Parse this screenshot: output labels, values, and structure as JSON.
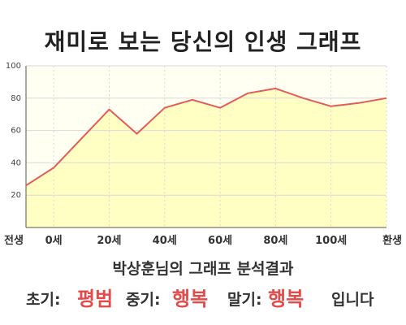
{
  "title": "재미로 보는 당신의 인생 그래프",
  "chart_data": {
    "type": "area",
    "x_categories": [
      "전생",
      "0세",
      "20세",
      "40세",
      "60세",
      "80세",
      "100세",
      "환생"
    ],
    "points": [
      {
        "x": "전생",
        "y": 26
      },
      {
        "x": "0세",
        "y": 37
      },
      {
        "x": "",
        "y": 55
      },
      {
        "x": "20세",
        "y": 73
      },
      {
        "x": "",
        "y": 58
      },
      {
        "x": "40세",
        "y": 74
      },
      {
        "x": "",
        "y": 79
      },
      {
        "x": "60세",
        "y": 74
      },
      {
        "x": "",
        "y": 83
      },
      {
        "x": "80세",
        "y": 86
      },
      {
        "x": "",
        "y": 80
      },
      {
        "x": "100세",
        "y": 75
      },
      {
        "x": "",
        "y": 77
      },
      {
        "x": "환생",
        "y": 80
      }
    ],
    "y_ticks": [
      20,
      40,
      60,
      80,
      100
    ],
    "ylim": [
      0,
      100
    ],
    "grid": true,
    "colors": {
      "line": "#e55a5a",
      "fill": "#ffffc4",
      "bg": "#fffff2",
      "grid": "#d9d9d9"
    }
  },
  "subtitle": "박상훈님의 그래프 분석결과",
  "result": {
    "early_label": "초기:",
    "early_value": "평범",
    "middle_label": "중기:",
    "middle_value": "행복",
    "late_label": "말기:",
    "late_value": "행복",
    "ending": "입니다"
  }
}
